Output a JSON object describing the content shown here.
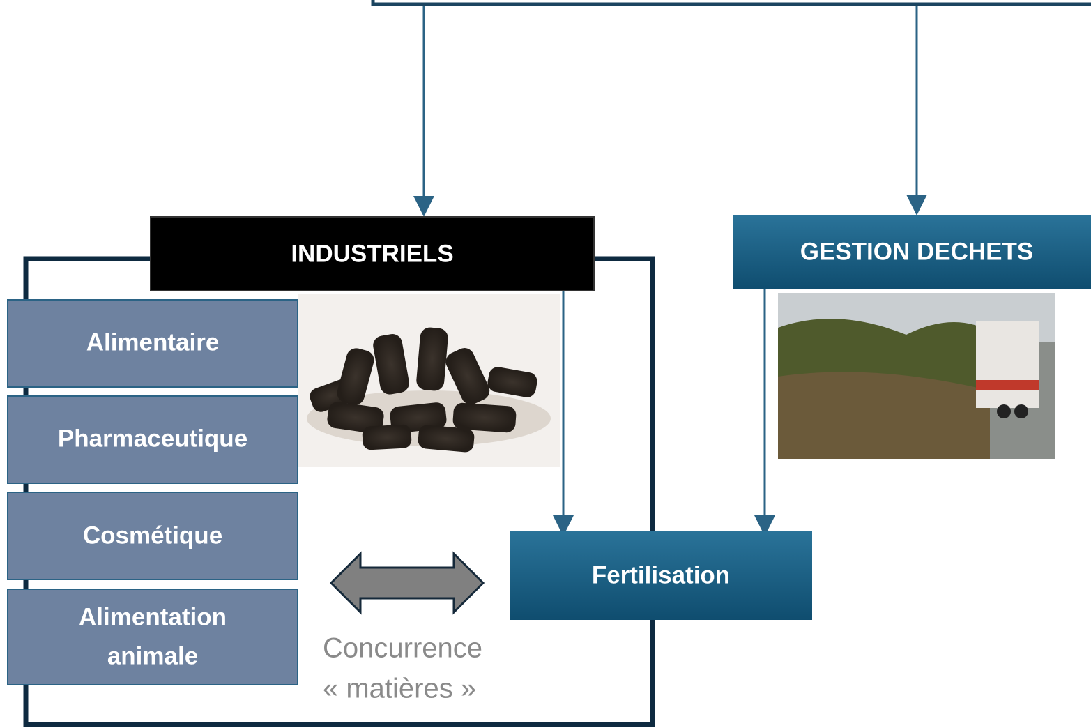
{
  "nodes": [
    {
      "id": "industriels",
      "label": [
        "INDUSTRIELS"
      ]
    },
    {
      "id": "gestion",
      "label": [
        "GESTION DECHETS"
      ]
    },
    {
      "id": "alimentaire",
      "label": [
        "Alimentaire"
      ]
    },
    {
      "id": "pharma",
      "label": [
        "Pharmaceutique"
      ]
    },
    {
      "id": "cosmetique",
      "label": [
        "Cosmétique"
      ]
    },
    {
      "id": "animale",
      "label": [
        "Alimentation",
        "animale"
      ]
    },
    {
      "id": "fertilisation",
      "label": [
        "Fertilisation"
      ]
    }
  ],
  "annotation": [
    "Concurrence",
    "« matières »"
  ]
}
